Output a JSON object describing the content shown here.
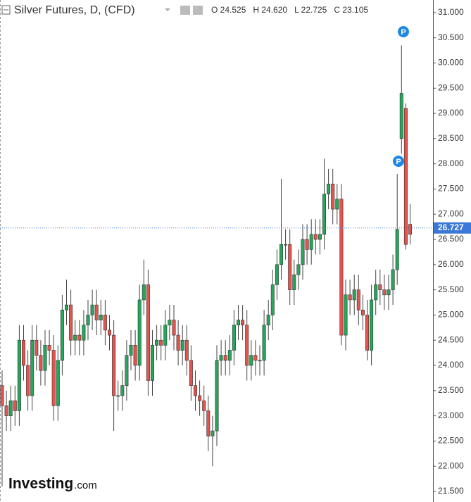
{
  "chart_data": {
    "type": "candlestick",
    "title": "Silver Futures, D, (CFD)",
    "ohlc_legend": [
      "O 24.525",
      "H 24.620",
      "L 22.725",
      "C 23.105"
    ],
    "logo": [
      "Investing",
      ".com"
    ],
    "markers": [
      "P",
      "P"
    ],
    "last_price": 26.727,
    "up_color": "#26a65b",
    "down_color": "#e4544f",
    "open": [
      23.6,
      23.2,
      23.0,
      23.3,
      23.1,
      24.5,
      24.0,
      23.4,
      24.5,
      24.2,
      23.9,
      24.4,
      24.3,
      23.2,
      24.1,
      25.1,
      25.2,
      24.5,
      24.6,
      24.5,
      24.8,
      25.0,
      25.2,
      24.9,
      25.0,
      24.7,
      24.6,
      23.4,
      23.4,
      23.6,
      24.2,
      24.4,
      24.0,
      25.3,
      25.6,
      23.7,
      24.4,
      24.5,
      24.4,
      24.8,
      24.9,
      24.6,
      24.3,
      24.5,
      24.1,
      23.6,
      23.4,
      23.3,
      23.1,
      22.6,
      22.7,
      24.1,
      24.2,
      24.1,
      24.3,
      24.8,
      24.9,
      24.8,
      24.0,
      24.2,
      24.1,
      24.1,
      24.8,
      25.0,
      25.6,
      26.0,
      26.4,
      26.4,
      25.5,
      25.8,
      26.0,
      26.5,
      26.3,
      26.6,
      26.5,
      26.6,
      27.4,
      27.6,
      27.1,
      27.3,
      24.6,
      25.4,
      25.3,
      25.5,
      25.1,
      25.0,
      24.3,
      25.3,
      25.6,
      25.5,
      25.4,
      25.5,
      25.9,
      28.5,
      29.1,
      26.8
    ],
    "high": [
      23.9,
      23.5,
      23.6,
      23.6,
      24.8,
      24.8,
      24.3,
      24.8,
      24.8,
      24.5,
      24.7,
      24.7,
      24.6,
      24.4,
      25.4,
      25.7,
      25.5,
      24.9,
      24.9,
      25.1,
      25.3,
      25.5,
      25.5,
      25.3,
      25.3,
      25.0,
      24.9,
      23.7,
      23.9,
      24.5,
      24.7,
      24.7,
      25.6,
      26.1,
      25.9,
      24.7,
      24.8,
      24.8,
      25.1,
      25.2,
      25.2,
      24.9,
      24.8,
      24.8,
      24.4,
      23.9,
      23.7,
      23.6,
      23.4,
      23.0,
      24.4,
      24.5,
      24.5,
      24.6,
      25.1,
      25.2,
      25.2,
      25.1,
      24.5,
      24.5,
      24.4,
      25.1,
      25.3,
      25.9,
      26.3,
      27.7,
      26.7,
      26.7,
      26.1,
      26.3,
      26.8,
      26.8,
      26.9,
      26.9,
      26.9,
      28.1,
      27.9,
      27.9,
      27.6,
      27.6,
      25.7,
      25.7,
      25.8,
      25.8,
      25.4,
      25.3,
      25.6,
      25.9,
      25.9,
      25.8,
      25.8,
      26.2,
      27.8,
      30.35,
      29.2,
      27.2
    ],
    "low": [
      21.6,
      22.7,
      22.7,
      22.8,
      22.8,
      23.7,
      23.1,
      23.1,
      23.9,
      23.6,
      23.6,
      24.0,
      22.9,
      22.9,
      23.8,
      24.8,
      24.2,
      24.2,
      24.2,
      24.2,
      24.5,
      24.7,
      24.6,
      24.6,
      24.4,
      24.3,
      22.7,
      23.1,
      23.1,
      23.3,
      23.9,
      23.7,
      23.7,
      25.0,
      23.4,
      23.4,
      24.1,
      24.1,
      24.1,
      24.5,
      24.3,
      24.0,
      24.0,
      23.8,
      23.3,
      23.1,
      23.0,
      22.8,
      22.3,
      22.0,
      22.4,
      23.8,
      23.8,
      23.8,
      24.0,
      24.5,
      24.5,
      23.7,
      23.7,
      23.8,
      23.8,
      23.8,
      24.5,
      24.7,
      25.3,
      25.7,
      26.1,
      25.2,
      25.2,
      25.5,
      25.7,
      26.0,
      26.0,
      26.2,
      26.2,
      26.3,
      27.1,
      26.8,
      26.8,
      24.4,
      24.3,
      25.0,
      25.0,
      24.8,
      24.7,
      24.1,
      24.0,
      25.0,
      25.2,
      25.1,
      25.1,
      25.2,
      25.6,
      28.2,
      26.3,
      26.4
    ],
    "close": [
      23.2,
      23.0,
      23.3,
      23.1,
      24.5,
      24.0,
      23.4,
      24.5,
      24.2,
      23.9,
      24.4,
      24.3,
      23.2,
      24.1,
      25.1,
      25.2,
      24.5,
      24.6,
      24.5,
      24.8,
      25.0,
      25.2,
      24.9,
      25.0,
      24.7,
      24.6,
      23.4,
      23.4,
      23.6,
      24.2,
      24.4,
      24.0,
      25.3,
      25.6,
      23.7,
      24.4,
      24.5,
      24.4,
      24.8,
      24.9,
      24.6,
      24.3,
      24.5,
      24.1,
      23.6,
      23.4,
      23.3,
      23.1,
      22.6,
      22.7,
      24.1,
      24.2,
      24.1,
      24.3,
      24.8,
      24.9,
      24.8,
      24.0,
      24.2,
      24.1,
      24.1,
      24.8,
      25.0,
      25.6,
      26.0,
      26.4,
      26.4,
      25.5,
      25.8,
      26.0,
      26.5,
      26.3,
      26.6,
      26.5,
      26.6,
      27.4,
      27.6,
      27.1,
      27.3,
      24.6,
      25.4,
      25.3,
      25.5,
      25.1,
      25.0,
      24.3,
      25.3,
      25.6,
      25.5,
      25.4,
      25.5,
      25.9,
      26.7,
      29.4,
      26.4,
      26.6
    ],
    "ylim": [
      21.29,
      31.25
    ],
    "yticks": [
      {
        "value": 21.5,
        "label": "21.500"
      },
      {
        "value": 22,
        "label": "22.000"
      },
      {
        "value": 22.5,
        "label": "22.500"
      },
      {
        "value": 23,
        "label": "23.000"
      },
      {
        "value": 23.5,
        "label": "23.500"
      },
      {
        "value": 24,
        "label": "24.000"
      },
      {
        "value": 24.5,
        "label": "24.500"
      },
      {
        "value": 25,
        "label": "25.000"
      },
      {
        "value": 25.5,
        "label": "25.500"
      },
      {
        "value": 26,
        "label": "26.000"
      },
      {
        "value": 26.5,
        "label": "26.500"
      },
      {
        "value": 27,
        "label": "27.000"
      },
      {
        "value": 27.5,
        "label": "27.500"
      },
      {
        "value": 28,
        "label": "28.000"
      },
      {
        "value": 28.5,
        "label": "28.500"
      },
      {
        "value": 29,
        "label": "29.000"
      },
      {
        "value": 29.5,
        "label": "29.500"
      },
      {
        "value": 30,
        "label": "30.000"
      },
      {
        "value": 30.5,
        "label": "30.500"
      },
      {
        "value": 31,
        "label": "31.000"
      }
    ]
  }
}
